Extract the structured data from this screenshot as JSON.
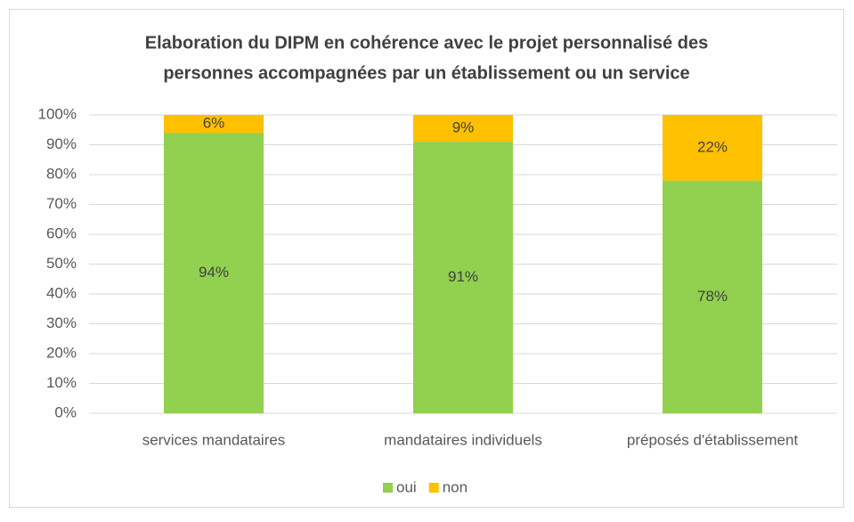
{
  "chart_data": {
    "type": "stacked_bar",
    "title": [
      "Elaboration du DIPM en cohérence avec le projet personnalisé des",
      "personnes accompagnées par un établissement ou un service"
    ],
    "categories": [
      "services mandataires",
      "mandataires individuels",
      "préposés d'établissement"
    ],
    "series": [
      {
        "name": "oui",
        "color": "#92d050",
        "values": [
          94,
          91,
          78
        ],
        "value_labels": [
          "94%",
          "91%",
          "78%"
        ]
      },
      {
        "name": "non",
        "color": "#ffc000",
        "values": [
          6,
          9,
          22
        ],
        "value_labels": [
          "6%",
          "9%",
          "22%"
        ]
      }
    ],
    "ylim": [
      0,
      100
    ],
    "yticks": [
      {
        "value": 0,
        "label": "0%"
      },
      {
        "value": 10,
        "label": "10%"
      },
      {
        "value": 20,
        "label": "20%"
      },
      {
        "value": 30,
        "label": "30%"
      },
      {
        "value": 40,
        "label": "40%"
      },
      {
        "value": 50,
        "label": "50%"
      },
      {
        "value": 60,
        "label": "60%"
      },
      {
        "value": 70,
        "label": "70%"
      },
      {
        "value": 80,
        "label": "80%"
      },
      {
        "value": 90,
        "label": "90%"
      },
      {
        "value": 100,
        "label": "100%"
      }
    ],
    "grid": true,
    "legend": "bottom"
  }
}
